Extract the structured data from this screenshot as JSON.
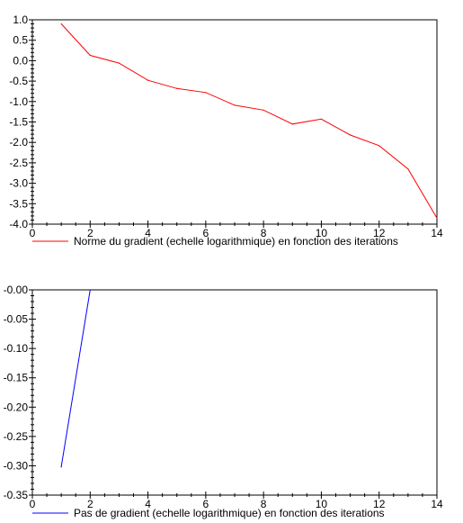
{
  "chart_data": [
    {
      "type": "line",
      "title": "",
      "xlabel": "",
      "ylabel": "",
      "xlim": [
        0,
        14
      ],
      "ylim": [
        -4.0,
        1.0
      ],
      "x_ticks": [
        0,
        2,
        4,
        6,
        8,
        10,
        12,
        14
      ],
      "x_tick_labels": [
        "0",
        "2",
        "4",
        "6",
        "8",
        "10",
        "12",
        "14"
      ],
      "y_ticks": [
        1.0,
        0.5,
        0.0,
        -0.5,
        -1.0,
        -1.5,
        -2.0,
        -2.5,
        -3.0,
        -3.5,
        -4.0
      ],
      "y_tick_labels": [
        "1.0",
        "0.5",
        "0.0",
        "-0.5",
        "-1.0",
        "-1.5",
        "-2.0",
        "-2.5",
        "-3.0",
        "-3.5",
        "-4.0"
      ],
      "grid": false,
      "legend": "bottom",
      "series": [
        {
          "name": "Norme du gradient (echelle logarithmique) en fonction des iterations",
          "color": "#ff0000",
          "x": [
            1,
            2,
            3,
            4,
            5,
            6,
            7,
            8,
            9,
            10,
            11,
            12,
            13,
            14
          ],
          "y": [
            0.9,
            0.13,
            -0.06,
            -0.48,
            -0.68,
            -0.78,
            -1.09,
            -1.21,
            -1.55,
            -1.43,
            -1.82,
            -2.08,
            -2.65,
            -3.85
          ]
        }
      ]
    },
    {
      "type": "line",
      "title": "",
      "xlabel": "",
      "ylabel": "",
      "xlim": [
        0,
        14
      ],
      "ylim": [
        -0.35,
        0.0
      ],
      "x_ticks": [
        0,
        2,
        4,
        6,
        8,
        10,
        12,
        14
      ],
      "x_tick_labels": [
        "0",
        "2",
        "4",
        "6",
        "8",
        "10",
        "12",
        "14"
      ],
      "y_ticks": [
        0.0,
        -0.05,
        -0.1,
        -0.15,
        -0.2,
        -0.25,
        -0.3,
        -0.35
      ],
      "y_tick_labels": [
        "-0.00",
        "-0.05",
        "-0.10",
        "-0.15",
        "-0.20",
        "-0.25",
        "-0.30",
        "-0.35"
      ],
      "grid": false,
      "legend": "bottom",
      "series": [
        {
          "name": "Pas de gradient (echelle logarithmique) en fonction des iterations",
          "color": "#0000ff",
          "x": [
            1,
            2
          ],
          "y": [
            -0.302,
            0.0
          ]
        }
      ]
    }
  ]
}
